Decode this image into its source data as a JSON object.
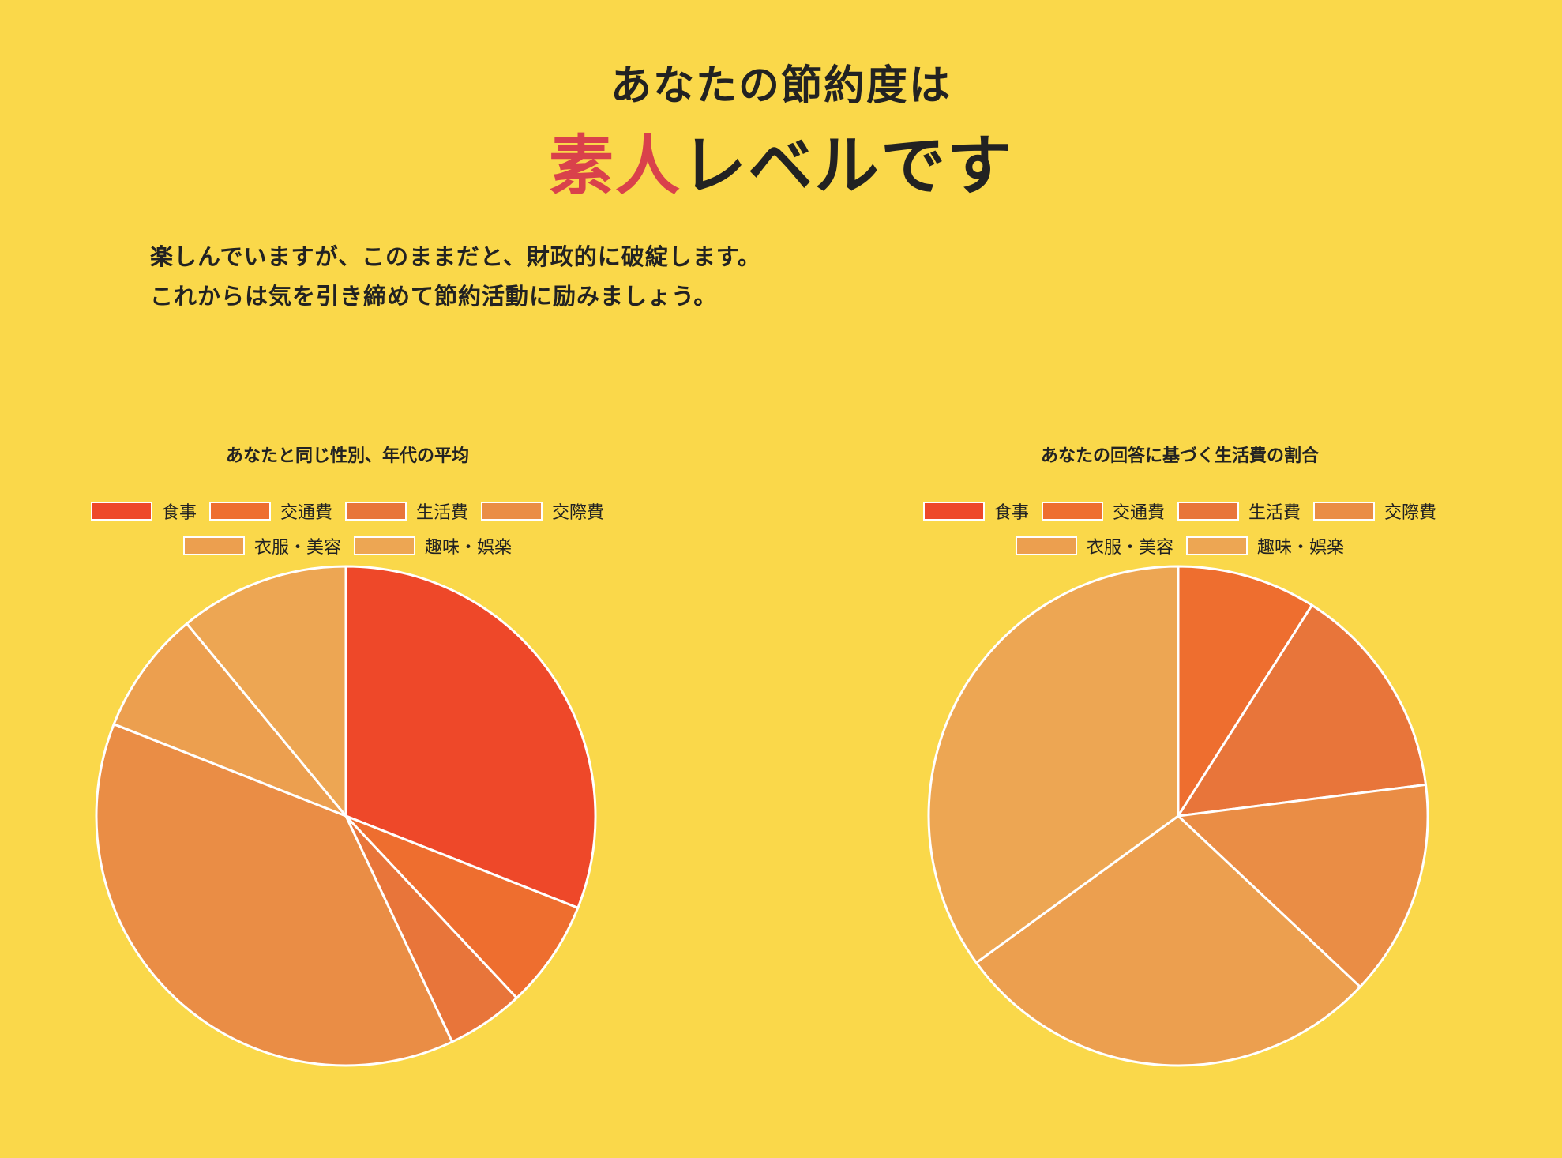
{
  "result": {
    "line1": "あなたの節約度は",
    "level_accent": "素人",
    "level_rest": "レベルです",
    "accent_color": "#D9414B"
  },
  "message": {
    "line1": "楽しんでいますが、このままだと、財政的に破綻します。",
    "line2": "これからは気を引き締めて節約活動に励みましょう。"
  },
  "chart_data": [
    {
      "type": "pie",
      "title": "あなたと同じ性別、年代の平均",
      "categories": [
        "食事",
        "交通費",
        "生活費",
        "交際費",
        "衣服・美容",
        "趣味・娯楽"
      ],
      "values": [
        31,
        7,
        5,
        38,
        8,
        11
      ],
      "colors": [
        "#EE4829",
        "#EE6E2F",
        "#E8753A",
        "#EA8D45",
        "#EC9F4F",
        "#EDA653"
      ],
      "legend_position": "top"
    },
    {
      "type": "pie",
      "title": "あなたの回答に基づく生活費の割合",
      "categories": [
        "食事",
        "交通費",
        "生活費",
        "交際費",
        "衣服・美容",
        "趣味・娯楽"
      ],
      "values": [
        0,
        9,
        14,
        14,
        28,
        35
      ],
      "colors": [
        "#EE4829",
        "#EE6E2F",
        "#E8753A",
        "#EA8D45",
        "#EC9F4F",
        "#EDA653"
      ],
      "legend_position": "top"
    }
  ]
}
